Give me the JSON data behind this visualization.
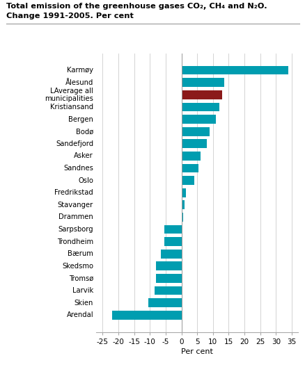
{
  "title_line1": "Total emission of the greenhouse gases CO₂, CH₄ and N₂O.",
  "title_line2": "Change 1991-2005. Per cent",
  "xlabel": "Per cent",
  "categories": [
    "Karmøy",
    "Ålesund",
    "LAverage all\nmunicipalities",
    "Kristiansand",
    "Bergen",
    "Bodø",
    "Sandefjord",
    "Asker",
    "Sandnes",
    "Oslo",
    "Fredrikstad",
    "Stavanger",
    "Drammen",
    "Sarpsborg",
    "Trondheim",
    "Bærum",
    "Skedsmo",
    "Tromsø",
    "Larvik",
    "Skien",
    "Arendal"
  ],
  "values": [
    34.0,
    13.5,
    13.0,
    12.0,
    11.0,
    9.0,
    8.0,
    6.0,
    5.5,
    4.0,
    1.5,
    1.0,
    0.5,
    -5.5,
    -5.5,
    -6.5,
    -8.0,
    -8.0,
    -8.5,
    -10.5,
    -22.0
  ],
  "bar_colors": [
    "#009db0",
    "#009db0",
    "#8b1a1a",
    "#009db0",
    "#009db0",
    "#009db0",
    "#009db0",
    "#009db0",
    "#009db0",
    "#009db0",
    "#009db0",
    "#009db0",
    "#009db0",
    "#009db0",
    "#009db0",
    "#009db0",
    "#009db0",
    "#009db0",
    "#009db0",
    "#009db0",
    "#009db0"
  ],
  "xlim": [
    -27,
    37
  ],
  "xticks": [
    -25,
    -20,
    -15,
    -10,
    -5,
    0,
    5,
    10,
    15,
    20,
    25,
    30,
    35
  ],
  "background_color": "#ffffff",
  "grid_color": "#cccccc"
}
